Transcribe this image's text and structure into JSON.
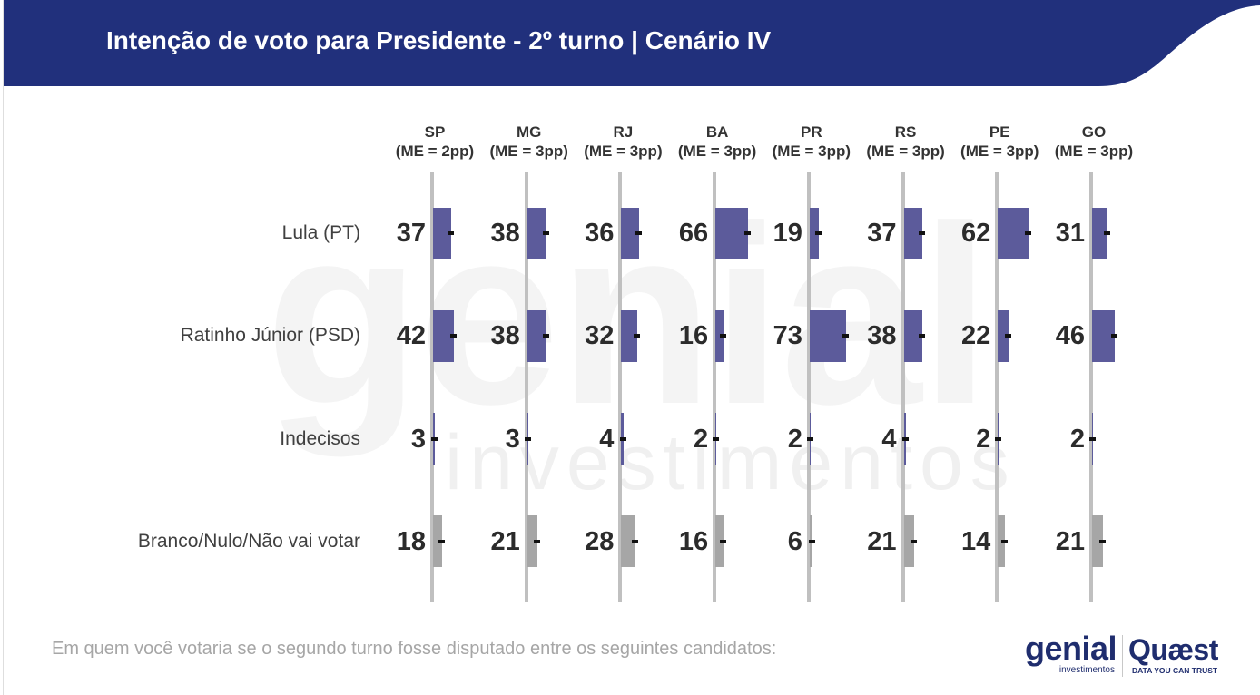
{
  "chart_data": {
    "type": "bar",
    "orientation": "horizontal",
    "title": "Intenção de voto para Presidente - 2º turno | Cenário IV",
    "columns": [
      {
        "state": "SP",
        "note": "(ME = 2pp)"
      },
      {
        "state": "MG",
        "note": "(ME = 3pp)"
      },
      {
        "state": "RJ",
        "note": "(ME = 3pp)"
      },
      {
        "state": "BA",
        "note": "(ME = 3pp)"
      },
      {
        "state": "PR",
        "note": "(ME = 3pp)"
      },
      {
        "state": "RS",
        "note": "(ME = 3pp)"
      },
      {
        "state": "PE",
        "note": "(ME = 3pp)"
      },
      {
        "state": "GO",
        "note": "(ME = 3pp)"
      }
    ],
    "series": [
      {
        "name": "Lula (PT)",
        "color": "#5c5b9b",
        "values": [
          37,
          38,
          36,
          66,
          19,
          37,
          62,
          31
        ]
      },
      {
        "name": "Ratinho Júnior (PSD)",
        "color": "#5c5b9b",
        "values": [
          42,
          38,
          32,
          16,
          73,
          38,
          22,
          46
        ]
      },
      {
        "name": "Indecisos",
        "color": "#5c5b9b",
        "values": [
          3,
          3,
          4,
          2,
          2,
          4,
          2,
          2
        ]
      },
      {
        "name": "Branco/Nulo/Não vai votar",
        "color": "#a6a6a6",
        "values": [
          18,
          21,
          28,
          16,
          6,
          21,
          14,
          21
        ]
      }
    ],
    "error_marks": true,
    "error_mark_color": "#111111",
    "axis_line_color": "#c0c0c0",
    "grid": false
  },
  "footer": {
    "question": "Em quem você votaria se o segundo turno fosse disputado entre os seguintes candidatos:"
  },
  "watermark": {
    "brand": "genial",
    "sub": "investimentos"
  },
  "logos": {
    "genial": {
      "name": "genial",
      "sub": "investimentos"
    },
    "quaest": {
      "name": "Quæst",
      "tagline": "DATA YOU CAN TRUST"
    }
  },
  "colors": {
    "header_bg": "#21307c",
    "brand_dark": "#1f2d6e",
    "footer_text": "#a6a6a6"
  }
}
